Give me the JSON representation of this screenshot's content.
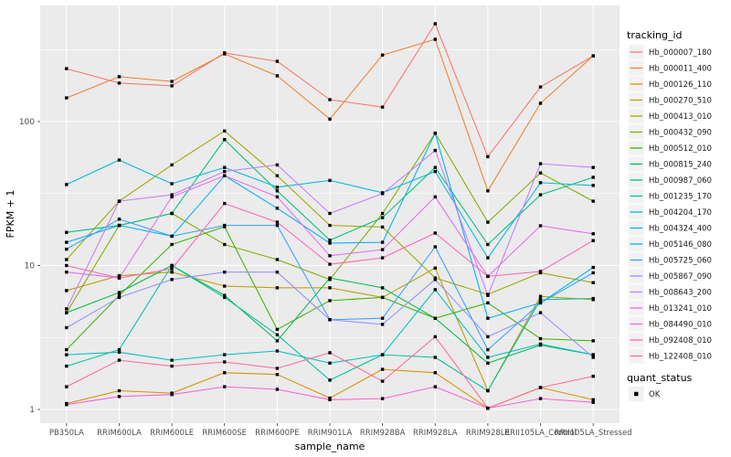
{
  "figure": {
    "ylabel": "FPKM + 1",
    "xlabel": "sample_name",
    "legend_title": "tracking_id",
    "legend2_title": "quant_status",
    "quant_status_label": "OK"
  },
  "chart_data": {
    "type": "line",
    "title": "",
    "xlabel": "sample_name",
    "ylabel": "FPKM + 1",
    "y_scale": "log10",
    "ylim": [
      0.93,
      570
    ],
    "y_ticks": [
      "1",
      "10",
      "100"
    ],
    "y_tick_values": [
      1,
      10,
      100
    ],
    "y_minor_values": [
      3.162,
      31.62,
      316.2
    ],
    "grid": true,
    "panel_bg": "#EBEBEB",
    "grid_color": "#FFFFFF",
    "tick_label_color": "#4D4D4D",
    "marker": "black-square",
    "marker_color": "#000000",
    "legend_title": "tracking_id",
    "legend_position": "right",
    "quant_status": {
      "title": "quant_status",
      "label": "OK"
    },
    "categories": [
      "PB350LA",
      "RRIM600LA",
      "RRIM600LE",
      "RRIM600SE",
      "RRIM600PE",
      "RRIM901LA",
      "RRIM928BA",
      "RRIM928LA",
      "RRIM928LE",
      "RRII105LA_Control",
      "RRII105LA_Stressed"
    ],
    "series": [
      {
        "name": "Hb_000007_180",
        "color": "#F8766D",
        "values": [
          233,
          185,
          177,
          300,
          262,
          142,
          126,
          478,
          57,
          174,
          286
        ]
      },
      {
        "name": "Hb_000011_400",
        "color": "#EA8331",
        "values": [
          146,
          205,
          190,
          295,
          208,
          104,
          290,
          373,
          33,
          134,
          286
        ]
      },
      {
        "name": "Hb_000126_110",
        "color": "#D89000",
        "values": [
          1.1,
          1.35,
          1.3,
          1.8,
          1.75,
          1.2,
          1.9,
          1.8,
          1.02,
          1.42,
          1.17
        ]
      },
      {
        "name": "Hb_000270_510",
        "color": "#C09B00",
        "values": [
          6.7,
          8.5,
          9,
          7.2,
          7,
          7,
          6,
          9.6,
          1.35,
          6.1,
          5.8
        ]
      },
      {
        "name": "Hb_000413_010",
        "color": "#A3A500",
        "values": [
          11,
          28,
          50,
          86,
          42,
          19,
          18.5,
          8.2,
          6.3,
          8.9,
          7.6
        ]
      },
      {
        "name": "Hb_000432_090",
        "color": "#7CAE00",
        "values": [
          4.7,
          19,
          23,
          14,
          11,
          8,
          23,
          83,
          20,
          44,
          28
        ]
      },
      {
        "name": "Hb_000512_010",
        "color": "#39B600",
        "values": [
          2.6,
          6.2,
          14,
          18.6,
          3.6,
          5.7,
          6,
          4.3,
          5.5,
          3.1,
          3
        ]
      },
      {
        "name": "Hb_000815_240",
        "color": "#00BB4E",
        "values": [
          4.7,
          6.5,
          10,
          6.2,
          3,
          8.2,
          7,
          4.3,
          2.1,
          2.8,
          2.4
        ]
      },
      {
        "name": "Hb_000987_060",
        "color": "#00BF7D",
        "values": [
          17,
          19,
          23,
          75,
          33,
          15,
          21.5,
          48,
          14,
          31,
          41
        ]
      },
      {
        "name": "Hb_001235_170",
        "color": "#00C1A3",
        "values": [
          2,
          2.6,
          10,
          6,
          3.3,
          1.6,
          2.4,
          2.3,
          1.35,
          5.8,
          5.9
        ]
      },
      {
        "name": "Hb_004204_170",
        "color": "#00BFC4",
        "values": [
          2.4,
          2.5,
          2.2,
          2.4,
          2.55,
          2.1,
          2.4,
          6.8,
          2.3,
          2.85,
          2.4
        ]
      },
      {
        "name": "Hb_004324_400",
        "color": "#00BAE0",
        "values": [
          36.5,
          54,
          37,
          48,
          35,
          39,
          32,
          45,
          11.3,
          37.6,
          36
        ]
      },
      {
        "name": "Hb_005146_080",
        "color": "#00B0F6",
        "values": [
          14.5,
          19,
          16,
          42,
          25,
          14.3,
          14.5,
          83,
          4.3,
          5.5,
          9.7
        ]
      },
      {
        "name": "Hb_005725_060",
        "color": "#35A2FF",
        "values": [
          13,
          21,
          16,
          19,
          19,
          4.2,
          4.3,
          13.5,
          2.6,
          5.5,
          8.9
        ]
      },
      {
        "name": "Hb_005867_090",
        "color": "#9590FF",
        "values": [
          3.7,
          6,
          8,
          9,
          9,
          4.2,
          3.9,
          8,
          3.2,
          4.7,
          2.3
        ]
      },
      {
        "name": "Hb_008643_200",
        "color": "#C77CFF",
        "values": [
          5,
          28,
          31,
          45,
          50,
          23,
          31.6,
          63,
          6.2,
          51,
          48
        ]
      },
      {
        "name": "Hb_013241_010",
        "color": "#E76BF3",
        "values": [
          9,
          8.2,
          30,
          42,
          30,
          11.7,
          12.9,
          30,
          8.4,
          18.9,
          16.6
        ]
      },
      {
        "name": "Hb_084490_010",
        "color": "#FA62DB",
        "values": [
          1.08,
          1.23,
          1.27,
          1.44,
          1.38,
          1.17,
          1.19,
          1.44,
          1.02,
          1.19,
          1.12
        ]
      },
      {
        "name": "Hb_092408_010",
        "color": "#FF62BC",
        "values": [
          10,
          8.2,
          9.5,
          27,
          20,
          10.2,
          11.3,
          16.8,
          8.4,
          9.1,
          14.9
        ]
      },
      {
        "name": "Hb_122408_010",
        "color": "#FF6A98",
        "values": [
          1.44,
          2.2,
          2,
          2.14,
          1.93,
          2.48,
          1.57,
          3.2,
          1.02,
          1.42,
          1.7
        ]
      }
    ]
  }
}
